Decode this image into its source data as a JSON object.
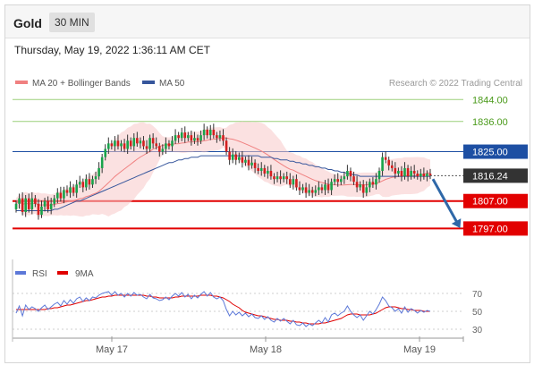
{
  "header": {
    "symbol": "Gold",
    "timeframe": "30 MIN"
  },
  "timestamp": "Thursday, May 19, 2022 1:36:11 AM CET",
  "colors": {
    "candle_up": "#18a34a",
    "candle_down": "#d41f1f",
    "ma50": "#36569c",
    "bollinger": "#f08080",
    "rsi": "#5c78d8",
    "rsi_ma": "#e00000",
    "green_level": "#9ccf7a",
    "blue_level": "#1d4fa3",
    "red_level": "#e20000",
    "price_tag": "#333333",
    "arrow": "#2f68a8"
  },
  "chart_data": {
    "type": "candlestick",
    "legend": [
      {
        "name": "MA 20 + Bollinger Bands",
        "color": "#f08080"
      },
      {
        "name": "MA 50",
        "color": "#36569c"
      }
    ],
    "credit": "Research © 2022 Trading Central",
    "x_ticks": [
      "May 17",
      "May 18",
      "May 19"
    ],
    "price_range": [
      1788,
      1848
    ],
    "current_price": {
      "label": "1816.24",
      "value": 1816.24
    },
    "levels": [
      {
        "label": "1844.00",
        "value": 1844,
        "kind": "resistance-green"
      },
      {
        "label": "1836.00",
        "value": 1836,
        "kind": "resistance-green"
      },
      {
        "label": "1825.00",
        "value": 1825,
        "kind": "pivot-blue"
      },
      {
        "label": "1807.00",
        "value": 1807,
        "kind": "support-red"
      },
      {
        "label": "1797.00",
        "value": 1797,
        "kind": "support-red"
      }
    ],
    "forecast_arrow": {
      "from": 1815,
      "to": 1798
    },
    "candles_close": [
      1806,
      1808,
      1803,
      1808,
      1804,
      1808,
      1806,
      1802,
      1805,
      1807,
      1804,
      1806,
      1808,
      1810,
      1808,
      1811,
      1810,
      1812,
      1810,
      1813,
      1814,
      1812,
      1815,
      1813,
      1815,
      1816,
      1819,
      1823,
      1826,
      1828,
      1827,
      1829,
      1827,
      1828,
      1826,
      1829,
      1827,
      1830,
      1828,
      1829,
      1827,
      1826,
      1830,
      1828,
      1827,
      1825,
      1826,
      1828,
      1827,
      1829,
      1831,
      1830,
      1832,
      1830,
      1831,
      1829,
      1830,
      1829,
      1831,
      1833,
      1831,
      1833,
      1831,
      1830,
      1831,
      1829,
      1825,
      1822,
      1824,
      1822,
      1823,
      1821,
      1822,
      1820,
      1821,
      1819,
      1818,
      1819,
      1817,
      1818,
      1816,
      1815,
      1816,
      1815,
      1816,
      1815,
      1813,
      1815,
      1812,
      1811,
      1812,
      1810,
      1811,
      1810,
      1811,
      1812,
      1811,
      1813,
      1811,
      1814,
      1815,
      1814,
      1815,
      1816,
      1818,
      1816,
      1814,
      1812,
      1813,
      1810,
      1812,
      1814,
      1813,
      1815,
      1818,
      1823,
      1822,
      1820,
      1819,
      1817,
      1818,
      1816,
      1819,
      1816,
      1818,
      1817,
      1816,
      1817,
      1816,
      1817,
      1816.24
    ],
    "ma50": [
      1803.5,
      1803.5,
      1803.5,
      1803.5,
      1803.5,
      1803.5,
      1803.5,
      1803.5,
      1803.5,
      1803.5,
      1803.5,
      1803.5,
      1804,
      1804,
      1804.5,
      1805,
      1805.5,
      1806,
      1806.5,
      1807,
      1807,
      1807.5,
      1808,
      1808.5,
      1809,
      1809.5,
      1810,
      1810.5,
      1811,
      1811.5,
      1812,
      1812.5,
      1813,
      1813.5,
      1814,
      1814.5,
      1815,
      1815.5,
      1816,
      1816.5,
      1817,
      1817.5,
      1818,
      1818.5,
      1819,
      1819.5,
      1820,
      1820.5,
      1821,
      1821,
      1821.5,
      1822,
      1822,
      1822.5,
      1822.5,
      1823,
      1823,
      1823,
      1823.5,
      1823.5,
      1823.5,
      1823.5,
      1823.5,
      1823.5,
      1823.5,
      1823.5,
      1823.5,
      1823.5,
      1823.5,
      1823.5,
      1823.5,
      1823.5,
      1823.5,
      1823.5,
      1823.5,
      1823.5,
      1823.5,
      1823,
      1823,
      1823,
      1823,
      1822.5,
      1822.5,
      1822,
      1822,
      1822,
      1821.5,
      1821.5,
      1821,
      1821,
      1820.5,
      1820.5,
      1820,
      1820,
      1819.5,
      1819.5,
      1819,
      1819,
      1818.5,
      1818.5,
      1818,
      1818,
      1817.5,
      1817.5,
      1817,
      1817,
      1816.5,
      1816.5,
      1816,
      1816,
      1816,
      1816,
      1816,
      1816,
      1816,
      1816,
      1816,
      1816,
      1816,
      1816,
      1816,
      1816,
      1816,
      1816,
      1816,
      1816,
      1816,
      1816,
      1816,
      1816,
      1816
    ],
    "rsi_panel": {
      "legend": [
        {
          "name": "RSI",
          "color": "#5c78d8"
        },
        {
          "name": "9MA",
          "color": "#e00000"
        }
      ],
      "y_ticks": [
        "70",
        "50",
        "30"
      ],
      "rsi": [
        48,
        56,
        45,
        57,
        52,
        55,
        53,
        50,
        54,
        57,
        52,
        55,
        58,
        60,
        56,
        62,
        58,
        63,
        59,
        64,
        66,
        61,
        65,
        62,
        66,
        65,
        68,
        70,
        71,
        72,
        68,
        72,
        68,
        70,
        66,
        70,
        67,
        71,
        68,
        69,
        66,
        64,
        69,
        65,
        64,
        62,
        63,
        66,
        63,
        67,
        70,
        67,
        71,
        66,
        69,
        64,
        68,
        65,
        69,
        72,
        67,
        71,
        66,
        64,
        66,
        62,
        52,
        45,
        50,
        46,
        49,
        45,
        48,
        44,
        47,
        43,
        42,
        45,
        41,
        44,
        40,
        38,
        42,
        39,
        42,
        39,
        36,
        40,
        35,
        34,
        37,
        33,
        36,
        34,
        37,
        40,
        37,
        43,
        38,
        46,
        48,
        45,
        48,
        50,
        56,
        50,
        46,
        43,
        46,
        40,
        45,
        50,
        47,
        52,
        58,
        66,
        62,
        56,
        54,
        50,
        53,
        48,
        55,
        49,
        53,
        51,
        48,
        51,
        49,
        51,
        50
      ],
      "ma9": [
        52,
        52,
        52,
        52,
        52,
        52,
        52,
        52,
        52,
        52,
        53,
        53,
        54,
        54,
        55,
        56,
        57,
        57,
        58,
        59,
        60,
        61,
        62,
        62,
        63,
        64,
        65,
        66,
        66,
        67,
        67,
        68,
        68,
        68,
        68,
        68,
        68,
        68,
        68,
        68,
        68,
        67,
        67,
        66,
        66,
        65,
        65,
        65,
        65,
        65,
        66,
        66,
        67,
        67,
        67,
        67,
        67,
        67,
        68,
        68,
        68,
        68,
        67,
        67,
        66,
        65,
        63,
        61,
        58,
        56,
        54,
        51,
        49,
        48,
        47,
        46,
        45,
        45,
        44,
        43,
        42,
        41,
        41,
        40,
        40,
        40,
        39,
        39,
        38,
        38,
        37,
        37,
        36,
        36,
        36,
        36,
        37,
        37,
        38,
        39,
        40,
        41,
        42,
        44,
        46,
        47,
        47,
        47,
        46,
        46,
        46,
        46,
        47,
        48,
        50,
        52,
        54,
        55,
        55,
        55,
        54,
        53,
        53,
        52,
        52,
        51,
        51,
        51,
        50,
        50,
        50
      ]
    }
  }
}
